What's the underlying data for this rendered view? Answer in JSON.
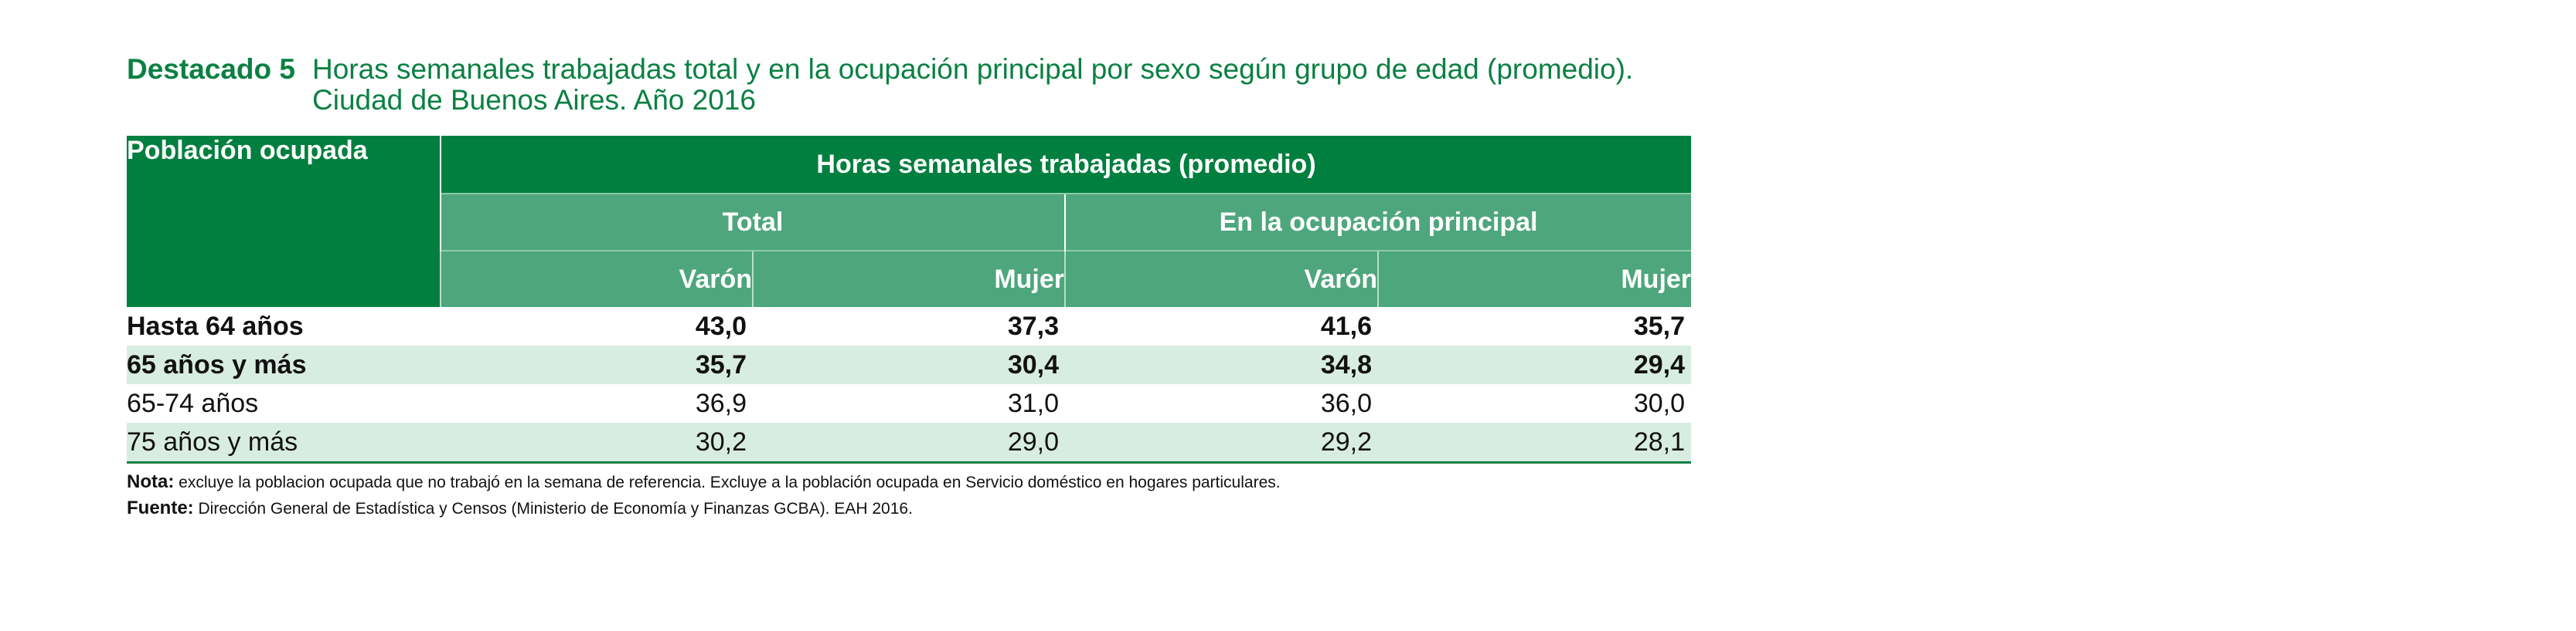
{
  "title": {
    "label": "Destacado 5",
    "line1": "Horas semanales trabajadas total y en la ocupación principal por sexo según grupo de edad (promedio).",
    "line2": "Ciudad de Buenos Aires. Año 2016"
  },
  "table": {
    "row_header": "Población ocupada",
    "main_header": "Horas semanales trabajadas (promedio)",
    "groups": [
      "Total",
      "En la ocupación principal"
    ],
    "subheaders": [
      "Varón",
      "Mujer",
      "Varón",
      "Mujer"
    ],
    "rows": [
      {
        "label": "Hasta 64 años",
        "values": [
          "43,0",
          "37,3",
          "41,6",
          "35,7"
        ]
      },
      {
        "label": "65 años y más",
        "values": [
          "35,7",
          "30,4",
          "34,8",
          "29,4"
        ]
      },
      {
        "label": "65-74 años",
        "values": [
          "36,9",
          "31,0",
          "36,0",
          "30,0"
        ]
      },
      {
        "label": "75 años y más",
        "values": [
          "30,2",
          "29,0",
          "29,2",
          "28,1"
        ]
      }
    ]
  },
  "notes": {
    "nota_label": "Nota:",
    "nota_text": "excluye la poblacion ocupada que no trabajó en la semana de referencia. Excluye a la población ocupada en Servicio doméstico en hogares particulares.",
    "fuente_label": "Fuente:",
    "fuente_text": "Dirección General de Estadística y Censos (Ministerio de Economía y Finanzas GCBA). EAH 2016."
  },
  "colors": {
    "header_dark": "#007f3e",
    "header_light": "#4ea67c",
    "row_shade": "#d8ede2",
    "title_green": "#0b8043"
  }
}
